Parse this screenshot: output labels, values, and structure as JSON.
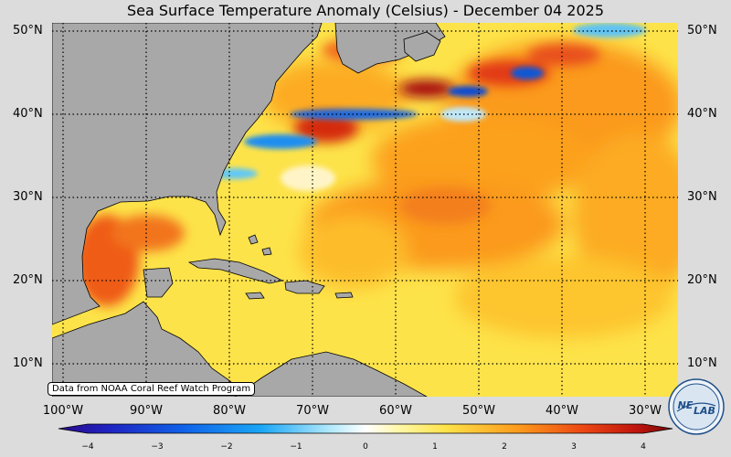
{
  "title": "Sea Surface Temperature Anomaly (Celsius) - December 04 2025",
  "credit": "Data from NOAA Coral Reef Watch Program",
  "latitude_labels": [
    "50°N",
    "40°N",
    "30°N",
    "20°N",
    "10°N"
  ],
  "longitude_labels": [
    "100°W",
    "90°W",
    "80°W",
    "70°W",
    "60°W",
    "50°W",
    "40°W",
    "30°W"
  ],
  "colorbar": {
    "ticks": [
      "−4",
      "−3",
      "−2",
      "−1",
      "0",
      "1",
      "2",
      "3",
      "4"
    ],
    "min": -4,
    "max": 4
  },
  "logo_text": {
    "left": "NE",
    "right": "LAB"
  },
  "colors": {
    "land": "#a8a8a8",
    "ocean_base": "#fde34a",
    "background": "#dcdcdc"
  }
}
